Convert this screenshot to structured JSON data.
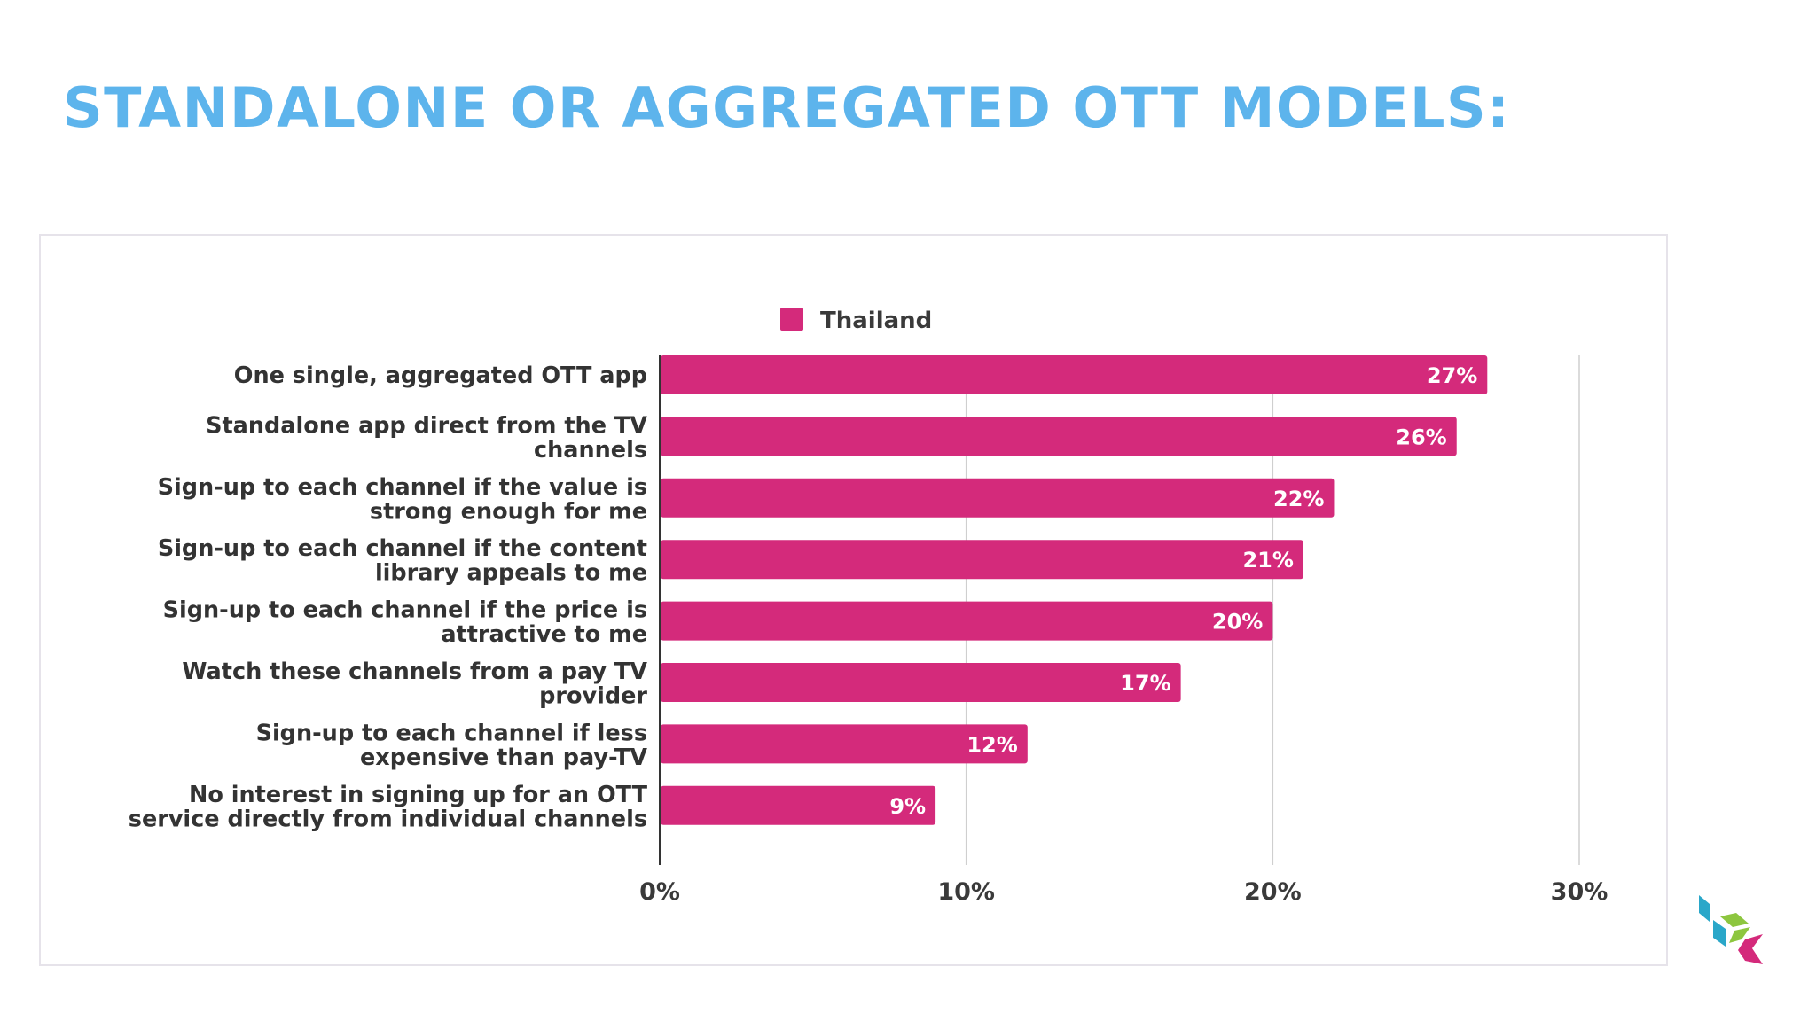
{
  "slide": {
    "title": "STANDALONE OR AGGREGATED OTT MODELS:",
    "title_color": "#5db4ec"
  },
  "chart_data": {
    "type": "bar",
    "orientation": "horizontal",
    "categories": [
      [
        "One single, aggregated OTT app"
      ],
      [
        "Standalone app direct from the TV",
        "channels"
      ],
      [
        "Sign-up to each channel if the value is",
        "strong enough for me"
      ],
      [
        "Sign-up to each channel if the content",
        "library appeals to me"
      ],
      [
        "Sign-up to each channel if the price is",
        "attractive to me"
      ],
      [
        "Watch these channels from a pay TV",
        "provider"
      ],
      [
        "Sign-up to each channel if less",
        "expensive than pay-TV"
      ],
      [
        "No interest in signing up for an OTT",
        "service directly from individual channels"
      ]
    ],
    "series": [
      {
        "name": "Thailand",
        "color": "#d42a7b",
        "values": [
          27,
          26,
          22,
          21,
          20,
          17,
          12,
          9
        ],
        "labels": [
          "27%",
          "26%",
          "22%",
          "21%",
          "20%",
          "17%",
          "12%",
          "9%"
        ]
      }
    ],
    "xlim": [
      0,
      30
    ],
    "xticks": [
      0,
      10,
      20,
      30
    ],
    "xtick_labels": [
      "0%",
      "10%",
      "20%",
      "30%"
    ],
    "grid": "vertical",
    "legend_position": "top"
  },
  "logo": {
    "colors": [
      "#2aa7c9",
      "#8dc63f",
      "#d42a7b"
    ]
  }
}
